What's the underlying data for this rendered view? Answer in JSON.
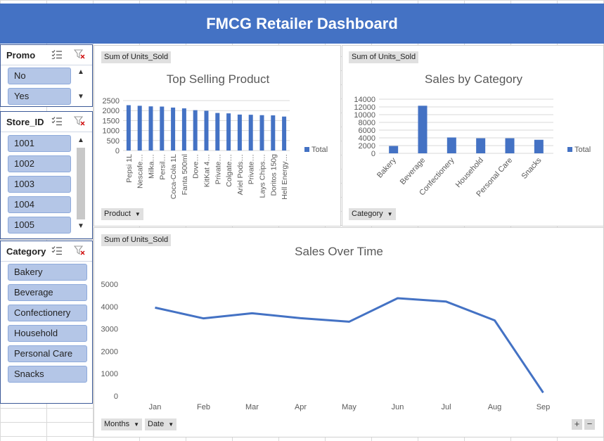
{
  "header": {
    "title": "FMCG Retailer Dashboard"
  },
  "colors": {
    "accent": "#4472c4",
    "slicer_item": "#b4c6e7",
    "series": "#4472c4"
  },
  "icons": [
    "multi-select-icon",
    "clear-filter-icon",
    "chevron-up-icon",
    "chevron-down-icon",
    "dropdown-arrow-icon",
    "zoom-in-icon",
    "zoom-out-icon"
  ],
  "slicers": {
    "promo": {
      "title": "Promo",
      "items": [
        "No",
        "Yes"
      ]
    },
    "store": {
      "title": "Store_ID",
      "items": [
        "1001",
        "1002",
        "1003",
        "1004",
        "1005"
      ]
    },
    "category": {
      "title": "Category",
      "items": [
        "Bakery",
        "Beverage",
        "Confectionery",
        "Household",
        "Personal Care",
        "Snacks"
      ]
    }
  },
  "charts": {
    "top_product": {
      "value_field": "Sum of Units_Sold",
      "axis_field": "Product",
      "legend": "Total"
    },
    "by_category": {
      "value_field": "Sum of Units_Sold",
      "axis_field": "Category",
      "legend": "Total"
    },
    "over_time": {
      "value_field": "Sum of Units_Sold",
      "axis_fields": [
        "Months",
        "Date"
      ]
    }
  },
  "chart_data": [
    {
      "type": "bar",
      "title": "Top Selling Product",
      "categories": [
        "Pepsi 1L",
        "Nescafe…",
        "Milka…",
        "Persil…",
        "Coca-Cola 1L",
        "Fanta 500ml",
        "Dove…",
        "KitKat 4…",
        "Private…",
        "Colgate…",
        "Ariel Pods…",
        "Private…",
        "Lays Chips…",
        "Doritos 150g",
        "Hell Energy…"
      ],
      "series": [
        {
          "name": "Total",
          "values": [
            2270,
            2240,
            2210,
            2200,
            2150,
            2110,
            2020,
            1990,
            1880,
            1860,
            1800,
            1790,
            1770,
            1760,
            1700
          ]
        }
      ],
      "ylim": [
        0,
        2500
      ],
      "yticks": [
        "0",
        "500",
        "1000",
        "1500",
        "2000",
        "2500"
      ],
      "grid": true,
      "legend": "right"
    },
    {
      "type": "bar",
      "title": "Sales by Category",
      "categories": [
        "Bakery",
        "Beverage",
        "Confectionery",
        "Household",
        "Personal Care",
        "Snacks"
      ],
      "series": [
        {
          "name": "Total",
          "values": [
            1900,
            12300,
            4100,
            3900,
            3900,
            3500
          ]
        }
      ],
      "ylim": [
        0,
        14000
      ],
      "yticks": [
        "0",
        "2000",
        "4000",
        "6000",
        "8000",
        "10000",
        "12000",
        "14000"
      ],
      "grid": true,
      "legend": "right"
    },
    {
      "type": "line",
      "title": "Sales Over Time",
      "x": [
        "Jan",
        "Feb",
        "Mar",
        "Apr",
        "May",
        "Jun",
        "Jul",
        "Aug",
        "Sep"
      ],
      "series": [
        {
          "values": [
            3950,
            3470,
            3700,
            3480,
            3320,
            4370,
            4220,
            3380,
            150
          ]
        }
      ],
      "ylim": [
        0,
        5000
      ],
      "yticks": [
        "0",
        "1000",
        "2000",
        "3000",
        "4000",
        "5000"
      ],
      "grid": true
    }
  ]
}
